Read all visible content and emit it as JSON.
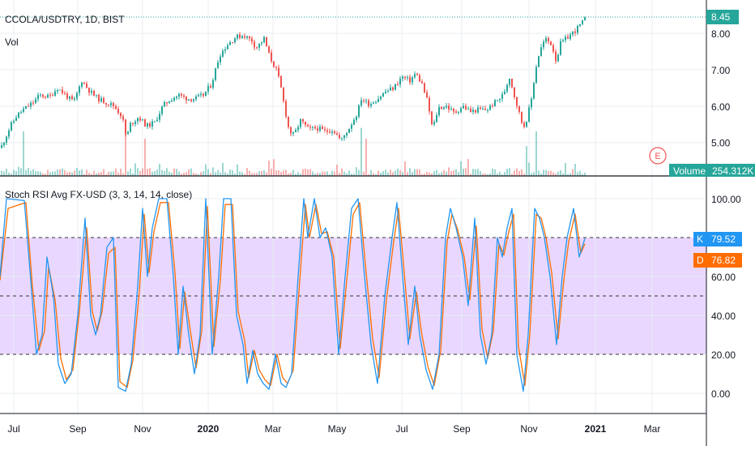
{
  "colors": {
    "up": "#26a69a",
    "down": "#ef5350",
    "k_line": "#2196f3",
    "d_line": "#ff6d00",
    "band_fill": "#e1c9ff",
    "grid": "#e8edf2",
    "volume_label_bg": "#26a69a",
    "price_label_bg": "#26a69a",
    "earnings_marker": "#ef5350"
  },
  "header": {
    "symbol": "CCOLA/USDTRY, 1D, BIST",
    "vol": "Vol"
  },
  "indicator": {
    "title": "Stoch RSI Avg FX-USD (3, 3, 14, 14, close)",
    "k_tag": "K",
    "k_value": "79.52",
    "d_tag": "D",
    "d_value": "76.82"
  },
  "price_axis": {
    "current_label": "8.45",
    "volume_label": "Volume",
    "volume_value": "254.312K",
    "earnings_label": "E"
  },
  "chart_data": [
    {
      "type": "candlestick",
      "ylim": [
        4.7,
        8.6
      ],
      "yticks": [
        "8.00",
        "7.00",
        "6.00",
        "5.00"
      ],
      "xticks": [
        "Jul",
        "Sep",
        "Nov",
        "2020",
        "Mar",
        "May",
        "Jul",
        "Sep",
        "Nov",
        "2021",
        "Mar"
      ],
      "xticks_bold": [
        "2020",
        "2021"
      ],
      "close_path": [
        [
          0,
          4.85
        ],
        [
          12,
          5.45
        ],
        [
          20,
          5.75
        ],
        [
          28,
          5.9
        ],
        [
          40,
          6.1
        ],
        [
          48,
          6.3
        ],
        [
          60,
          6.25
        ],
        [
          70,
          6.5
        ],
        [
          80,
          6.3
        ],
        [
          90,
          6.1
        ],
        [
          100,
          6.7
        ],
        [
          110,
          6.4
        ],
        [
          120,
          6.2
        ],
        [
          130,
          6.1
        ],
        [
          140,
          6.0
        ],
        [
          150,
          5.7
        ],
        [
          155,
          5.1
        ],
        [
          160,
          5.5
        ],
        [
          170,
          5.7
        ],
        [
          180,
          5.45
        ],
        [
          190,
          5.55
        ],
        [
          200,
          6.0
        ],
        [
          210,
          6.2
        ],
        [
          220,
          6.3
        ],
        [
          230,
          6.2
        ],
        [
          240,
          6.2
        ],
        [
          250,
          6.3
        ],
        [
          260,
          6.6
        ],
        [
          270,
          7.4
        ],
        [
          280,
          7.7
        ],
        [
          290,
          7.9
        ],
        [
          300,
          7.95
        ],
        [
          310,
          7.8
        ],
        [
          315,
          7.6
        ],
        [
          325,
          7.85
        ],
        [
          332,
          7.35
        ],
        [
          340,
          7.0
        ],
        [
          345,
          6.6
        ],
        [
          350,
          6.0
        ],
        [
          356,
          5.3
        ],
        [
          362,
          5.2
        ],
        [
          370,
          5.6
        ],
        [
          380,
          5.35
        ],
        [
          390,
          5.4
        ],
        [
          400,
          5.3
        ],
        [
          410,
          5.35
        ],
        [
          420,
          5.05
        ],
        [
          430,
          5.4
        ],
        [
          440,
          5.8
        ],
        [
          445,
          6.2
        ],
        [
          455,
          6.05
        ],
        [
          465,
          6.2
        ],
        [
          475,
          6.4
        ],
        [
          485,
          6.5
        ],
        [
          495,
          6.8
        ],
        [
          505,
          6.7
        ],
        [
          512,
          6.9
        ],
        [
          520,
          6.6
        ],
        [
          527,
          6.1
        ],
        [
          533,
          5.35
        ],
        [
          540,
          5.95
        ],
        [
          550,
          6.0
        ],
        [
          560,
          5.8
        ],
        [
          570,
          6.0
        ],
        [
          580,
          5.85
        ],
        [
          590,
          5.9
        ],
        [
          600,
          5.9
        ],
        [
          610,
          6.1
        ],
        [
          620,
          6.3
        ],
        [
          628,
          6.8
        ],
        [
          635,
          6.2
        ],
        [
          645,
          5.4
        ],
        [
          650,
          5.7
        ],
        [
          655,
          6.2
        ],
        [
          660,
          7.0
        ],
        [
          665,
          7.5
        ],
        [
          672,
          7.85
        ],
        [
          680,
          7.7
        ],
        [
          686,
          7.2
        ],
        [
          690,
          7.7
        ],
        [
          700,
          7.9
        ],
        [
          710,
          8.1
        ],
        [
          720,
          8.35
        ],
        [
          723,
          8.45
        ]
      ],
      "volume_spikes": [
        [
          28,
          5.3
        ],
        [
          155,
          5.3
        ],
        [
          178,
          5.1
        ],
        [
          332,
          4.5
        ],
        [
          445,
          5.4
        ],
        [
          450,
          5.1
        ],
        [
          648,
          4.9
        ],
        [
          660,
          5.3
        ]
      ]
    },
    {
      "type": "line",
      "ylim": [
        -4,
        104
      ],
      "yticks": [
        "100.00",
        "80.00",
        "60.00",
        "40.00",
        "20.00",
        "0.00"
      ],
      "bands": [
        80,
        50,
        20
      ],
      "series": [
        {
          "name": "K",
          "values": [
            [
              0,
              60
            ],
            [
              8,
              100
            ],
            [
              30,
              99
            ],
            [
              38,
              58
            ],
            [
              45,
              20
            ],
            [
              52,
              30
            ],
            [
              58,
              70
            ],
            [
              66,
              50
            ],
            [
              72,
              15
            ],
            [
              80,
              5
            ],
            [
              88,
              10
            ],
            [
              96,
              40
            ],
            [
              105,
              90
            ],
            [
              112,
              40
            ],
            [
              118,
              30
            ],
            [
              124,
              40
            ],
            [
              132,
              75
            ],
            [
              140,
              80
            ],
            [
              146,
              3
            ],
            [
              155,
              1
            ],
            [
              162,
              15
            ],
            [
              170,
              55
            ],
            [
              176,
              95
            ],
            [
              182,
              60
            ],
            [
              188,
              85
            ],
            [
              196,
              100
            ],
            [
              206,
              100
            ],
            [
              214,
              60
            ],
            [
              220,
              20
            ],
            [
              226,
              55
            ],
            [
              233,
              30
            ],
            [
              240,
              10
            ],
            [
              247,
              30
            ],
            [
              254,
              100
            ],
            [
              262,
              20
            ],
            [
              270,
              60
            ],
            [
              276,
              100
            ],
            [
              285,
              100
            ],
            [
              292,
              40
            ],
            [
              300,
              25
            ],
            [
              305,
              5
            ],
            [
              312,
              22
            ],
            [
              318,
              10
            ],
            [
              325,
              5
            ],
            [
              332,
              2
            ],
            [
              340,
              20
            ],
            [
              347,
              5
            ],
            [
              353,
              3
            ],
            [
              360,
              10
            ],
            [
              368,
              60
            ],
            [
              375,
              100
            ],
            [
              380,
              80
            ],
            [
              388,
              100
            ],
            [
              395,
              80
            ],
            [
              402,
              85
            ],
            [
              410,
              70
            ],
            [
              418,
              20
            ],
            [
              426,
              60
            ],
            [
              434,
              95
            ],
            [
              442,
              100
            ],
            [
              450,
              60
            ],
            [
              458,
              25
            ],
            [
              466,
              5
            ],
            [
              475,
              50
            ],
            [
              484,
              80
            ],
            [
              490,
              98
            ],
            [
              497,
              60
            ],
            [
              504,
              25
            ],
            [
              512,
              55
            ],
            [
              518,
              30
            ],
            [
              526,
              12
            ],
            [
              534,
              2
            ],
            [
              542,
              20
            ],
            [
              550,
              80
            ],
            [
              556,
              95
            ],
            [
              563,
              85
            ],
            [
              571,
              70
            ],
            [
              578,
              45
            ],
            [
              586,
              90
            ],
            [
              593,
              30
            ],
            [
              600,
              15
            ],
            [
              607,
              30
            ],
            [
              614,
              80
            ],
            [
              620,
              70
            ],
            [
              626,
              85
            ],
            [
              632,
              95
            ],
            [
              638,
              20
            ],
            [
              646,
              1
            ],
            [
              652,
              30
            ],
            [
              660,
              95
            ],
            [
              666,
              90
            ],
            [
              672,
              80
            ],
            [
              679,
              60
            ],
            [
              687,
              25
            ],
            [
              694,
              60
            ],
            [
              700,
              80
            ],
            [
              708,
              95
            ],
            [
              715,
              70
            ],
            [
              722,
              79.5
            ]
          ]
        },
        {
          "name": "D",
          "values": [
            [
              0,
              58
            ],
            [
              10,
              95
            ],
            [
              32,
              98
            ],
            [
              40,
              55
            ],
            [
              48,
              22
            ],
            [
              55,
              32
            ],
            [
              60,
              65
            ],
            [
              68,
              48
            ],
            [
              75,
              18
            ],
            [
              82,
              7
            ],
            [
              90,
              12
            ],
            [
              98,
              42
            ],
            [
              107,
              85
            ],
            [
              114,
              42
            ],
            [
              120,
              32
            ],
            [
              126,
              42
            ],
            [
              134,
              72
            ],
            [
              142,
              75
            ],
            [
              148,
              6
            ],
            [
              157,
              3
            ],
            [
              164,
              17
            ],
            [
              172,
              52
            ],
            [
              178,
              92
            ],
            [
              184,
              62
            ],
            [
              190,
              83
            ],
            [
              198,
              98
            ],
            [
              208,
              98
            ],
            [
              216,
              62
            ],
            [
              222,
              23
            ],
            [
              228,
              52
            ],
            [
              235,
              32
            ],
            [
              242,
              13
            ],
            [
              249,
              32
            ],
            [
              256,
              96
            ],
            [
              264,
              24
            ],
            [
              272,
              58
            ],
            [
              278,
              97
            ],
            [
              287,
              97
            ],
            [
              294,
              42
            ],
            [
              302,
              27
            ],
            [
              307,
              8
            ],
            [
              314,
              22
            ],
            [
              320,
              12
            ],
            [
              327,
              7
            ],
            [
              334,
              4
            ],
            [
              342,
              20
            ],
            [
              349,
              8
            ],
            [
              355,
              5
            ],
            [
              362,
              12
            ],
            [
              370,
              58
            ],
            [
              377,
              97
            ],
            [
              382,
              80
            ],
            [
              390,
              97
            ],
            [
              397,
              82
            ],
            [
              404,
              83
            ],
            [
              412,
              70
            ],
            [
              420,
              23
            ],
            [
              428,
              58
            ],
            [
              436,
              92
            ],
            [
              444,
              98
            ],
            [
              452,
              62
            ],
            [
              460,
              28
            ],
            [
              468,
              8
            ],
            [
              477,
              48
            ],
            [
              486,
              78
            ],
            [
              492,
              95
            ],
            [
              499,
              62
            ],
            [
              506,
              28
            ],
            [
              514,
              52
            ],
            [
              520,
              32
            ],
            [
              528,
              14
            ],
            [
              536,
              4
            ],
            [
              544,
              22
            ],
            [
              552,
              78
            ],
            [
              558,
              92
            ],
            [
              565,
              84
            ],
            [
              573,
              70
            ],
            [
              580,
              48
            ],
            [
              588,
              86
            ],
            [
              595,
              33
            ],
            [
              602,
              18
            ],
            [
              609,
              32
            ],
            [
              616,
              77
            ],
            [
              622,
              71
            ],
            [
              628,
              83
            ],
            [
              634,
              92
            ],
            [
              640,
              24
            ],
            [
              648,
              4
            ],
            [
              654,
              30
            ],
            [
              662,
              92
            ],
            [
              668,
              90
            ],
            [
              674,
              80
            ],
            [
              681,
              62
            ],
            [
              689,
              28
            ],
            [
              696,
              58
            ],
            [
              702,
              78
            ],
            [
              710,
              92
            ],
            [
              717,
              72
            ],
            [
              722,
              76.8
            ]
          ]
        }
      ]
    }
  ]
}
